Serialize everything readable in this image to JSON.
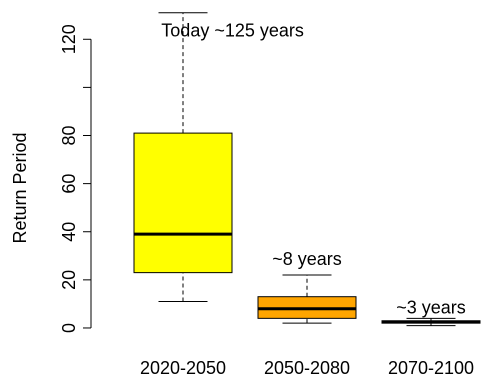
{
  "chart_data": {
    "type": "boxplot",
    "title": "",
    "xlabel": "",
    "ylabel": "Return Period",
    "ylim": [
      -5,
      133
    ],
    "yticks": [
      0,
      20,
      40,
      60,
      80,
      100,
      120
    ],
    "ytick_labels": [
      "0",
      "20",
      "40",
      "60",
      "80",
      "",
      "120"
    ],
    "grid": false,
    "categories": [
      "2020-2050",
      "2050-2080",
      "2070-2100"
    ],
    "boxes": [
      {
        "category": "2020-2050",
        "whisker_low": 11,
        "q1": 23,
        "median": 39,
        "q3": 81,
        "whisker_high": 131,
        "fill": "#FFFF00",
        "median_color": "#000000"
      },
      {
        "category": "2050-2080",
        "whisker_low": 2,
        "q1": 4,
        "median": 8,
        "q3": 13,
        "whisker_high": 22,
        "fill": "#FFA500",
        "median_color": "#000000"
      },
      {
        "category": "2070-2100",
        "whisker_low": 1,
        "q1": 2,
        "median": 2.5,
        "q3": 3,
        "whisker_high": 4,
        "fill": "#FF0000",
        "median_color": "#000000"
      }
    ],
    "annotations": [
      {
        "text": "Today ~125 years",
        "x_index": 1.4,
        "y": 124
      },
      {
        "text": "~8 years",
        "x_index": 2.0,
        "y": 29
      },
      {
        "text": "~3 years",
        "x_index": 3.0,
        "y": 9
      }
    ]
  }
}
